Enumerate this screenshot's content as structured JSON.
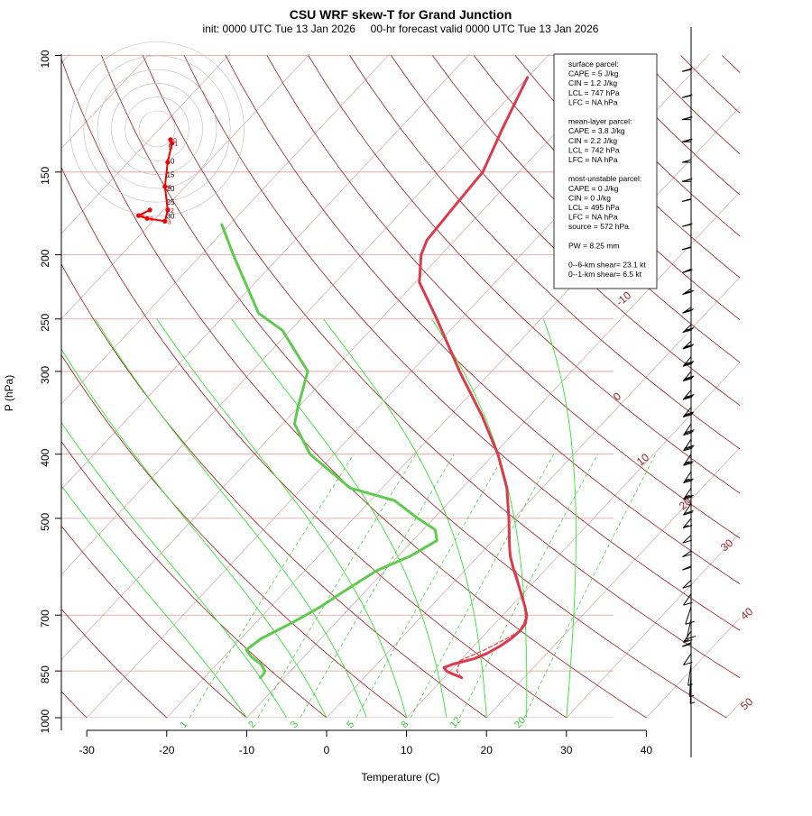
{
  "chart_data": {
    "type": "skew-T",
    "title": "CSU WRF skew-T for Grand Junction",
    "subtitle": "init: 0000 UTC Tue 13 Jan 2026     00-hr forecast valid 0000 UTC Tue 13 Jan 2026",
    "xlabel": "Temperature (C)",
    "ylabel": "P (hPa)",
    "xlim": [
      -33,
      45
    ],
    "ylim": [
      1000,
      100
    ],
    "x_ticks": [
      "-30",
      "-20",
      "-10",
      "0",
      "10",
      "20",
      "30",
      "40"
    ],
    "p_ticks": [
      "1000",
      "850",
      "700",
      "500",
      "400",
      "300",
      "250",
      "200",
      "150",
      "100"
    ],
    "isotherm_labels": [
      "-10",
      "0",
      "10",
      "20",
      "30",
      "40",
      "50"
    ],
    "mixing_ratio_labels": [
      "1",
      "2",
      "3",
      "5",
      "8",
      "12",
      "20"
    ],
    "temperature_profile": [
      {
        "p": 870,
        "t": 12.2
      },
      {
        "p": 865,
        "t": 11.5
      },
      {
        "p": 858,
        "t": 10.5
      },
      {
        "p": 850,
        "t": 9.5
      },
      {
        "p": 840,
        "t": 8.8
      },
      {
        "p": 830,
        "t": 9.5
      },
      {
        "p": 815,
        "t": 11.5
      },
      {
        "p": 800,
        "t": 12.5
      },
      {
        "p": 780,
        "t": 13.3
      },
      {
        "p": 760,
        "t": 13.8
      },
      {
        "p": 740,
        "t": 14.0
      },
      {
        "p": 720,
        "t": 13.8
      },
      {
        "p": 700,
        "t": 13.0
      },
      {
        "p": 680,
        "t": 11.8
      },
      {
        "p": 650,
        "t": 9.8
      },
      {
        "p": 620,
        "t": 7.7
      },
      {
        "p": 600,
        "t": 6.2
      },
      {
        "p": 570,
        "t": 4.0
      },
      {
        "p": 550,
        "t": 2.7
      },
      {
        "p": 500,
        "t": -0.6
      },
      {
        "p": 450,
        "t": -4.4
      },
      {
        "p": 400,
        "t": -9.5
      },
      {
        "p": 350,
        "t": -16.0
      },
      {
        "p": 300,
        "t": -24.0
      },
      {
        "p": 250,
        "t": -33.0
      },
      {
        "p": 220,
        "t": -39.5
      },
      {
        "p": 200,
        "t": -42.5
      },
      {
        "p": 190,
        "t": -43.5
      },
      {
        "p": 170,
        "t": -44.0
      },
      {
        "p": 150,
        "t": -44.5
      },
      {
        "p": 130,
        "t": -47.0
      },
      {
        "p": 115,
        "t": -49.0
      },
      {
        "p": 108,
        "t": -50.0
      }
    ],
    "parcel_profile": [
      {
        "p": 870,
        "t": 12.2
      },
      {
        "p": 850,
        "t": 10.8
      },
      {
        "p": 820,
        "t": 10.0
      },
      {
        "p": 790,
        "t": 11.8
      },
      {
        "p": 760,
        "t": 13.2
      },
      {
        "p": 740,
        "t": 14.0
      },
      {
        "p": 710,
        "t": 13.3
      },
      {
        "p": 680,
        "t": 11.8
      },
      {
        "p": 650,
        "t": 9.8
      },
      {
        "p": 620,
        "t": 7.8
      },
      {
        "p": 600,
        "t": 6.4
      }
    ],
    "dewpoint_profile": [
      {
        "p": 870,
        "t": -13.0
      },
      {
        "p": 860,
        "t": -13.0
      },
      {
        "p": 850,
        "t": -13.2
      },
      {
        "p": 830,
        "t": -14.5
      },
      {
        "p": 810,
        "t": -16.5
      },
      {
        "p": 790,
        "t": -18.0
      },
      {
        "p": 760,
        "t": -17.5
      },
      {
        "p": 720,
        "t": -15.5
      },
      {
        "p": 680,
        "t": -13.8
      },
      {
        "p": 640,
        "t": -12.5
      },
      {
        "p": 600,
        "t": -11.0
      },
      {
        "p": 570,
        "t": -8.5
      },
      {
        "p": 540,
        "t": -7.0
      },
      {
        "p": 520,
        "t": -8.5
      },
      {
        "p": 500,
        "t": -12.0
      },
      {
        "p": 470,
        "t": -17.0
      },
      {
        "p": 450,
        "t": -24.0
      },
      {
        "p": 400,
        "t": -33.0
      },
      {
        "p": 360,
        "t": -38.5
      },
      {
        "p": 340,
        "t": -40.0
      },
      {
        "p": 300,
        "t": -43.0
      },
      {
        "p": 260,
        "t": -51.0
      },
      {
        "p": 245,
        "t": -56.0
      },
      {
        "p": 200,
        "t": -66.0
      },
      {
        "p": 180,
        "t": -71.0
      }
    ],
    "hodograph_rings": [
      "5",
      "10",
      "15",
      "20",
      "25",
      "30"
    ],
    "hodograph_points": [
      {
        "u": 0.0,
        "v": 0.6,
        "label": "0"
      },
      {
        "u": 0.3,
        "v": -0.2,
        "label": "1"
      },
      {
        "u": -0.6,
        "v": -4.2,
        "label": ""
      },
      {
        "u": -1.2,
        "v": -9.4,
        "label": "4"
      },
      {
        "u": -0.6,
        "v": -14.4,
        "label": "2"
      },
      {
        "u": -1.2,
        "v": -16.8,
        "label": "3"
      },
      {
        "u": -5.0,
        "v": -16.2,
        "label": "8"
      },
      {
        "u": -6.8,
        "v": -15.6,
        "label": "5"
      },
      {
        "u": -4.4,
        "v": -14.4,
        "label": ""
      }
    ],
    "wind_barbs": [
      {
        "p": 105,
        "dir": 275,
        "spd": 25
      },
      {
        "p": 115,
        "dir": 275,
        "spd": 25
      },
      {
        "p": 125,
        "dir": 270,
        "spd": 20
      },
      {
        "p": 135,
        "dir": 270,
        "spd": 25
      },
      {
        "p": 145,
        "dir": 270,
        "spd": 15
      },
      {
        "p": 155,
        "dir": 270,
        "spd": 20
      },
      {
        "p": 165,
        "dir": 275,
        "spd": 15
      },
      {
        "p": 180,
        "dir": 275,
        "spd": 20
      },
      {
        "p": 195,
        "dir": 275,
        "spd": 15
      },
      {
        "p": 210,
        "dir": 280,
        "spd": 25
      },
      {
        "p": 225,
        "dir": 285,
        "spd": 30
      },
      {
        "p": 240,
        "dir": 285,
        "spd": 30
      },
      {
        "p": 255,
        "dir": 290,
        "spd": 30
      },
      {
        "p": 270,
        "dir": 290,
        "spd": 30
      },
      {
        "p": 285,
        "dir": 295,
        "spd": 30
      },
      {
        "p": 300,
        "dir": 295,
        "spd": 30
      },
      {
        "p": 320,
        "dir": 295,
        "spd": 30
      },
      {
        "p": 340,
        "dir": 295,
        "spd": 30
      },
      {
        "p": 360,
        "dir": 300,
        "spd": 30
      },
      {
        "p": 380,
        "dir": 300,
        "spd": 30
      },
      {
        "p": 400,
        "dir": 300,
        "spd": 25
      },
      {
        "p": 425,
        "dir": 300,
        "spd": 25
      },
      {
        "p": 450,
        "dir": 300,
        "spd": 25
      },
      {
        "p": 475,
        "dir": 300,
        "spd": 20
      },
      {
        "p": 500,
        "dir": 295,
        "spd": 15
      },
      {
        "p": 530,
        "dir": 290,
        "spd": 10
      },
      {
        "p": 560,
        "dir": 285,
        "spd": 10
      },
      {
        "p": 590,
        "dir": 280,
        "spd": 10
      },
      {
        "p": 620,
        "dir": 290,
        "spd": 10
      },
      {
        "p": 650,
        "dir": 300,
        "spd": 10
      },
      {
        "p": 680,
        "dir": 320,
        "spd": 10
      },
      {
        "p": 710,
        "dir": 330,
        "spd": 10
      },
      {
        "p": 740,
        "dir": 300,
        "spd": 15
      },
      {
        "p": 770,
        "dir": 280,
        "spd": 15
      },
      {
        "p": 800,
        "dir": 300,
        "spd": 10
      },
      {
        "p": 830,
        "dir": 340,
        "spd": 5
      },
      {
        "p": 860,
        "dir": 350,
        "spd": 5
      },
      {
        "p": 880,
        "dir": 355,
        "spd": 5
      }
    ],
    "colors": {
      "temperature": "#dc3a4a",
      "dewpoint": "#5fcb4e",
      "isotherm": "#c89999",
      "isobar": "#dd9999",
      "dry_adiabat": "#9b1b1b",
      "moist_adiabat": "#33e633",
      "mixing_ratio": "#33cc33",
      "hodograph": "#ee0000",
      "label_red": "#a02020"
    }
  },
  "info_box": {
    "lines": [
      "surface parcel:",
      "CAPE = 5 J/kg",
      "CIN = 1.2 J/kg",
      "LCL = 747 hPa",
      "LFC = NA hPa",
      "",
      "mean-layer parcel:",
      "CAPE = 3.8 J/kg",
      "CIN = 2.2 J/kg",
      "LCL = 742 hPa",
      "LFC = NA hPa",
      "",
      "most-unstable parcel:",
      "CAPE = 0 J/kg",
      "CIN = 0 J/kg",
      "LCL = 495 hPa",
      "LFC = NA hPa",
      "source = 572 hPa",
      "",
      "PW =  8.25 mm",
      "",
      "0--6-km shear= 23.1 kt",
      "0--1-km shear= 6.5 kt"
    ]
  }
}
